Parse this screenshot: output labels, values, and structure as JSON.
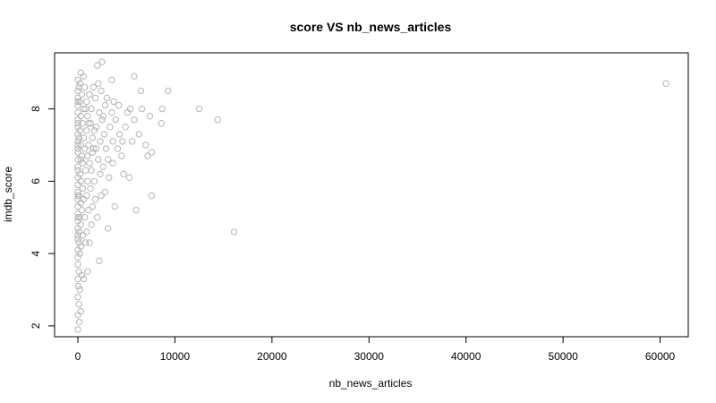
{
  "chart_data": {
    "type": "scatter",
    "title": "score VS nb_news_articles",
    "xlabel": "nb_news_articles",
    "ylabel": "imdb_score",
    "xlim": [
      -2400,
      62900
    ],
    "ylim": [
      1.7,
      9.55
    ],
    "x_ticks": [
      0,
      10000,
      20000,
      30000,
      40000,
      50000,
      60000
    ],
    "x_tick_labels": [
      "0",
      "10000",
      "20000",
      "30000",
      "40000",
      "50000",
      "60000"
    ],
    "y_ticks": [
      2,
      4,
      6,
      8
    ],
    "y_tick_labels": [
      "2",
      "4",
      "6",
      "8"
    ],
    "grid": false,
    "legend": "none",
    "point_color": "#b5b5b5",
    "marker": "open-circle",
    "points": [
      [
        0,
        1.9
      ],
      [
        150,
        2.1
      ],
      [
        0,
        2.3
      ],
      [
        300,
        2.4
      ],
      [
        100,
        2.6
      ],
      [
        0,
        2.8
      ],
      [
        200,
        3.0
      ],
      [
        50,
        3.1
      ],
      [
        0,
        3.3
      ],
      [
        400,
        3.4
      ],
      [
        100,
        3.5
      ],
      [
        0,
        3.7
      ],
      [
        600,
        3.3
      ],
      [
        1000,
        3.5
      ],
      [
        2200,
        3.8
      ],
      [
        0,
        3.9
      ],
      [
        200,
        4.0
      ],
      [
        0,
        4.1
      ],
      [
        300,
        4.2
      ],
      [
        100,
        4.3
      ],
      [
        800,
        4.3
      ],
      [
        1200,
        4.3
      ],
      [
        0,
        4.4
      ],
      [
        500,
        4.5
      ],
      [
        100,
        4.6
      ],
      [
        900,
        4.6
      ],
      [
        0,
        4.7
      ],
      [
        300,
        4.8
      ],
      [
        1400,
        4.8
      ],
      [
        0,
        4.9
      ],
      [
        200,
        5.0
      ],
      [
        700,
        5.0
      ],
      [
        2000,
        5.0
      ],
      [
        0,
        5.1
      ],
      [
        400,
        5.2
      ],
      [
        1100,
        5.2
      ],
      [
        0,
        5.3
      ],
      [
        300,
        5.4
      ],
      [
        1500,
        5.3
      ],
      [
        3800,
        5.3
      ],
      [
        0,
        5.5
      ],
      [
        600,
        5.5
      ],
      [
        1800,
        5.5
      ],
      [
        100,
        5.6
      ],
      [
        900,
        5.6
      ],
      [
        2400,
        5.6
      ],
      [
        7600,
        5.6
      ],
      [
        0,
        5.7
      ],
      [
        500,
        5.8
      ],
      [
        1300,
        5.8
      ],
      [
        0,
        5.9
      ],
      [
        300,
        6.0
      ],
      [
        1000,
        6.0
      ],
      [
        1700,
        6.0
      ],
      [
        3200,
        6.1
      ],
      [
        5300,
        6.1
      ],
      [
        4700,
        6.2
      ],
      [
        0,
        6.1
      ],
      [
        200,
        6.2
      ],
      [
        800,
        6.3
      ],
      [
        1400,
        6.3
      ],
      [
        2600,
        6.4
      ],
      [
        0,
        6.4
      ],
      [
        500,
        6.5
      ],
      [
        1200,
        6.5
      ],
      [
        2100,
        6.6
      ],
      [
        3100,
        6.6
      ],
      [
        0,
        6.6
      ],
      [
        400,
        6.7
      ],
      [
        1000,
        6.7
      ],
      [
        4500,
        6.7
      ],
      [
        7200,
        6.7
      ],
      [
        7600,
        6.8
      ],
      [
        0,
        6.8
      ],
      [
        700,
        6.9
      ],
      [
        1600,
        6.9
      ],
      [
        2900,
        6.9
      ],
      [
        4100,
        6.9
      ],
      [
        0,
        7.0
      ],
      [
        300,
        7.0
      ],
      [
        1100,
        7.0
      ],
      [
        2300,
        7.1
      ],
      [
        3600,
        7.1
      ],
      [
        5600,
        7.1
      ],
      [
        7000,
        7.0
      ],
      [
        0,
        7.1
      ],
      [
        600,
        7.2
      ],
      [
        1500,
        7.2
      ],
      [
        2700,
        7.3
      ],
      [
        4300,
        7.3
      ],
      [
        6300,
        7.3
      ],
      [
        0,
        7.3
      ],
      [
        200,
        7.4
      ],
      [
        900,
        7.4
      ],
      [
        1900,
        7.5
      ],
      [
        3300,
        7.5
      ],
      [
        4900,
        7.5
      ],
      [
        0,
        7.5
      ],
      [
        500,
        7.6
      ],
      [
        1300,
        7.6
      ],
      [
        2500,
        7.7
      ],
      [
        3900,
        7.7
      ],
      [
        5800,
        7.7
      ],
      [
        8600,
        7.6
      ],
      [
        14400,
        7.7
      ],
      [
        0,
        7.7
      ],
      [
        300,
        7.8
      ],
      [
        1000,
        7.8
      ],
      [
        2200,
        7.9
      ],
      [
        3500,
        7.9
      ],
      [
        5100,
        7.9
      ],
      [
        7400,
        7.8
      ],
      [
        0,
        7.9
      ],
      [
        600,
        8.0
      ],
      [
        1400,
        8.0
      ],
      [
        2800,
        8.1
      ],
      [
        4200,
        8.1
      ],
      [
        6600,
        8.0
      ],
      [
        8700,
        8.0
      ],
      [
        12500,
        8.0
      ],
      [
        0,
        8.1
      ],
      [
        200,
        8.2
      ],
      [
        900,
        8.2
      ],
      [
        1800,
        8.3
      ],
      [
        3000,
        8.3
      ],
      [
        0,
        8.3
      ],
      [
        400,
        8.4
      ],
      [
        1200,
        8.4
      ],
      [
        2400,
        8.5
      ],
      [
        9300,
        8.5
      ],
      [
        6500,
        8.5
      ],
      [
        0,
        8.5
      ],
      [
        700,
        8.6
      ],
      [
        1600,
        8.6
      ],
      [
        200,
        8.7
      ],
      [
        2100,
        8.7
      ],
      [
        3500,
        8.8
      ],
      [
        5800,
        8.9
      ],
      [
        0,
        8.8
      ],
      [
        600,
        8.9
      ],
      [
        300,
        9.0
      ],
      [
        2000,
        9.2
      ],
      [
        2500,
        9.3
      ],
      [
        60600,
        8.7
      ],
      [
        16100,
        4.6
      ],
      [
        3100,
        4.7
      ],
      [
        6000,
        5.2
      ],
      [
        4600,
        7.1
      ],
      [
        3600,
        6.5
      ],
      [
        2800,
        5.7
      ],
      [
        1500,
        6.8
      ],
      [
        1100,
        7.6
      ],
      [
        800,
        8.0
      ],
      [
        100,
        7.2
      ],
      [
        0,
        6.3
      ],
      [
        0,
        5.6
      ],
      [
        0,
        5.0
      ],
      [
        0,
        4.5
      ],
      [
        0,
        6.9
      ],
      [
        0,
        7.6
      ],
      [
        0,
        8.2
      ],
      [
        100,
        8.6
      ],
      [
        300,
        6.6
      ],
      [
        1700,
        7.4
      ],
      [
        2600,
        7.8
      ],
      [
        2300,
        6.2
      ],
      [
        1900,
        6.9
      ],
      [
        3700,
        8.2
      ],
      [
        5400,
        8.0
      ]
    ]
  }
}
